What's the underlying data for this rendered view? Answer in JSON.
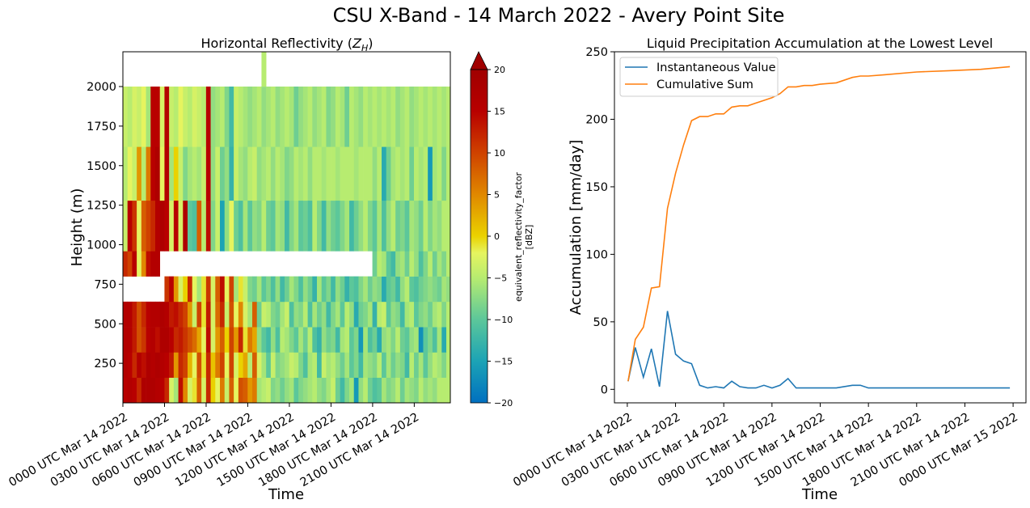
{
  "figure": {
    "suptitle": "CSU X-Band - 14 March 2022 - Avery Point Site"
  },
  "chart_data": [
    {
      "type": "heatmap",
      "title": "Horizontal Reflectivity (Z_H)",
      "title_text": "Horizontal Reflectivity (",
      "title_symbol": "Z",
      "title_subscript": "H",
      "title_end": ")",
      "xlabel": "Time",
      "ylabel": "Height (m)",
      "xlim": [
        0,
        23.6
      ],
      "ylim": [
        0,
        2220
      ],
      "xticks": [
        0,
        3,
        6,
        9,
        12,
        15,
        18,
        21
      ],
      "xtick_labels": [
        "0000 UTC Mar 14 2022",
        "0300 UTC Mar 14 2022",
        "0600 UTC Mar 14 2022",
        "0900 UTC Mar 14 2022",
        "1200 UTC Mar 14 2022",
        "1500 UTC Mar 14 2022",
        "1800 UTC Mar 14 2022",
        "2100 UTC Mar 14 2022"
      ],
      "yticks": [
        250,
        500,
        750,
        1000,
        1250,
        1500,
        1750,
        2000
      ],
      "ytick_labels": [
        "250",
        "500",
        "750",
        "1000",
        "1250",
        "1500",
        "1750",
        "2000"
      ],
      "colorbar": {
        "label_line1": "equivalent_reflectivity_factor",
        "label_line2": "[dBZ]",
        "min": -20,
        "max": 20,
        "extend": "max",
        "ticks": [
          -20,
          -15,
          -10,
          -5,
          0,
          5,
          10,
          15,
          20
        ],
        "tick_labels": [
          "−20",
          "−15",
          "−10",
          "−5",
          "0",
          "5",
          "10",
          "15",
          "20"
        ]
      },
      "time_bin_hours": 0.333,
      "n_time_bins": 71,
      "height_bands": [
        [
          0,
          160
        ],
        [
          160,
          320
        ],
        [
          320,
          480
        ],
        [
          480,
          640
        ],
        [
          640,
          800
        ],
        [
          800,
          960
        ],
        [
          960,
          1280
        ],
        [
          1280,
          1620
        ],
        [
          1620,
          2000
        ],
        [
          2000,
          2220
        ]
      ],
      "values_dbz": [
        [
          15,
          16,
          15,
          12,
          17,
          17,
          17,
          16,
          15,
          12,
          -3,
          -6,
          14,
          5,
          -3,
          -1,
          8,
          -3,
          12,
          0,
          -2,
          6,
          -4,
          8,
          -2,
          9,
          8,
          4,
          6,
          -6,
          -5,
          -4,
          -8,
          -7,
          -9,
          -7,
          -6,
          -10,
          -8,
          -7,
          -6,
          -5,
          -7,
          -8,
          -6,
          -4,
          -9,
          -12,
          -8,
          -6,
          -16,
          -7,
          -5,
          -9,
          -11,
          -10,
          -6,
          -8,
          -7,
          -5,
          -9,
          -6,
          -7,
          -8,
          -5,
          -7,
          -6,
          -7,
          -5,
          -5,
          -5
        ],
        [
          16,
          15,
          12,
          16,
          14,
          17,
          16,
          17,
          16,
          15,
          13,
          4,
          12,
          10,
          2,
          -2,
          9,
          -1,
          12,
          1,
          6,
          10,
          -2,
          10,
          -3,
          0,
          3,
          -5,
          8,
          -3,
          -6,
          -10,
          -4,
          -8,
          -7,
          -6,
          -4,
          -5,
          -8,
          -11,
          -6,
          -5,
          -12,
          -4,
          -6,
          -5,
          -7,
          -9,
          -6,
          -10,
          -8,
          -12,
          -6,
          -7,
          -8,
          -5,
          -10,
          -6,
          -9,
          -7,
          -8,
          -12,
          -5,
          -9,
          -6,
          -10,
          -7,
          -5,
          -6,
          -8,
          -5
        ],
        [
          16,
          16,
          13,
          9,
          11,
          15,
          16,
          14,
          17,
          17,
          15,
          12,
          13,
          11,
          9,
          7,
          3,
          -2,
          14,
          -3,
          4,
          8,
          0,
          10,
          4,
          12,
          -1,
          6,
          3,
          -7,
          -10,
          -12,
          -7,
          -11,
          -5,
          -6,
          -8,
          -10,
          -6,
          -9,
          -5,
          -11,
          -13,
          -7,
          -9,
          -8,
          -12,
          -6,
          -5,
          -10,
          -8,
          -16,
          -6,
          -11,
          -9,
          -14,
          -7,
          -6,
          -8,
          -5,
          -9,
          -10,
          -7,
          -6,
          -17,
          -10,
          -8,
          -11,
          -6,
          -14,
          -5
        ],
        [
          16,
          16,
          13,
          9,
          12,
          15,
          16,
          16,
          17,
          16,
          13,
          14,
          12,
          10,
          4,
          -4,
          10,
          -1,
          13,
          -3,
          7,
          12,
          -4,
          9,
          -2,
          5,
          -3,
          -6,
          8,
          -9,
          -4,
          -5,
          -8,
          -9,
          -6,
          -4,
          -11,
          -7,
          -8,
          -5,
          -11,
          -6,
          -9,
          -7,
          -12,
          -8,
          -6,
          -10,
          -5,
          -7,
          -14,
          -9,
          -8,
          -6,
          -13,
          -5,
          -4,
          -10,
          -7,
          -8,
          -12,
          -6,
          -5,
          -10,
          -8,
          -7,
          -9,
          -6,
          -5,
          -8,
          -5
        ],
        [
          null,
          null,
          null,
          null,
          null,
          null,
          null,
          null,
          null,
          11,
          15,
          4,
          -3,
          0,
          12,
          -2,
          -6,
          -1,
          11,
          -3,
          8,
          14,
          -2,
          10,
          -6,
          -1,
          -4,
          -8,
          -9,
          -6,
          -10,
          -8,
          -11,
          -7,
          -12,
          -9,
          -6,
          -8,
          -11,
          -7,
          -9,
          -13,
          -6,
          -10,
          -8,
          -12,
          -7,
          -9,
          -13,
          -10,
          -11,
          -8,
          -6,
          -9,
          -7,
          -8,
          -14,
          -10,
          -9,
          -12,
          -7,
          -5,
          -10,
          -11,
          -9,
          -8,
          -7,
          -8,
          -9,
          -6,
          -7
        ],
        [
          12,
          10,
          15,
          -2,
          5,
          14,
          16,
          16,
          null,
          null,
          null,
          null,
          null,
          null,
          null,
          null,
          null,
          null,
          null,
          null,
          null,
          null,
          null,
          null,
          null,
          null,
          null,
          null,
          null,
          null,
          null,
          null,
          null,
          null,
          null,
          null,
          null,
          null,
          null,
          null,
          null,
          null,
          null,
          null,
          null,
          null,
          null,
          null,
          null,
          null,
          null,
          null,
          null,
          null,
          -9,
          -5,
          -6,
          -10,
          -12,
          -7,
          -6,
          -9,
          -5,
          -7,
          -11,
          -8,
          -5,
          -9,
          -6,
          -8,
          -5
        ],
        [
          -4,
          15,
          11,
          -2,
          8,
          10,
          12,
          16,
          17,
          15,
          -3,
          15,
          -3,
          17,
          -10,
          -11,
          8,
          -5,
          14,
          -8,
          -4,
          -15,
          -7,
          -2,
          -9,
          -11,
          -6,
          -10,
          -7,
          -8,
          -5,
          -9,
          -10,
          -6,
          -7,
          -12,
          -8,
          -6,
          -10,
          -9,
          -11,
          -5,
          -8,
          -12,
          -7,
          -9,
          -10,
          -8,
          -6,
          -12,
          -9,
          -7,
          -5,
          -8,
          -10,
          -6,
          -11,
          -7,
          -5,
          -9,
          -8,
          -10,
          -6,
          -7,
          -9,
          -5,
          -8,
          -6,
          -7,
          -5,
          -5
        ],
        [
          -5,
          -2,
          -4,
          4,
          -5,
          6,
          15,
          17,
          -2,
          16,
          -6,
          0,
          -4,
          -8,
          -6,
          -5,
          -6,
          -4,
          15,
          -7,
          -4,
          -9,
          -7,
          -13,
          -4,
          -6,
          -7,
          -5,
          -4,
          -7,
          -6,
          -5,
          -7,
          -5,
          -6,
          -8,
          -7,
          -5,
          -6,
          -5,
          -7,
          -5,
          -5,
          -6,
          -5,
          -5,
          -6,
          -5,
          -5,
          -5,
          -6,
          -5,
          -5,
          -5,
          -7,
          -5,
          -14,
          -9,
          -6,
          -5,
          -6,
          -5,
          -9,
          -5,
          -6,
          -5,
          -16,
          -6,
          -5,
          -8,
          -5
        ],
        [
          -4,
          -5,
          -3,
          -4,
          -2,
          -6,
          15,
          15,
          -3,
          16,
          -4,
          -5,
          -2,
          -4,
          -5,
          -3,
          -4,
          -5,
          15,
          -7,
          -6,
          -5,
          -8,
          -12,
          -4,
          -5,
          -6,
          -7,
          -6,
          -5,
          -7,
          -6,
          -5,
          -7,
          -6,
          -5,
          -6,
          -9,
          -7,
          -6,
          -5,
          -7,
          -6,
          -5,
          -8,
          -7,
          -5,
          -6,
          -9,
          -5,
          -6,
          -7,
          -5,
          -6,
          -5,
          -6,
          -5,
          -6,
          -5,
          -7,
          -6,
          -5,
          -7,
          -6,
          -5,
          -6,
          -5,
          -6,
          -5,
          -6,
          -5
        ],
        [
          null,
          null,
          null,
          null,
          null,
          null,
          null,
          null,
          null,
          null,
          null,
          null,
          null,
          null,
          null,
          null,
          null,
          null,
          null,
          null,
          null,
          null,
          null,
          null,
          null,
          null,
          null,
          null,
          null,
          null,
          -5,
          null,
          null,
          null,
          null,
          null,
          null,
          null,
          null,
          null,
          null,
          null,
          null,
          null,
          null,
          null,
          null,
          null,
          null,
          null,
          null,
          null,
          null,
          null,
          null,
          null,
          null,
          null,
          null,
          null,
          null,
          null,
          null,
          null,
          null,
          null,
          null,
          null,
          null,
          null,
          null
        ]
      ]
    },
    {
      "type": "line",
      "title": "Liquid Precipitation Accumulation at the Lowest Level",
      "xlabel": "Time",
      "ylabel": "Accumulation [mm/day]",
      "xlim": [
        -0.8,
        24.8
      ],
      "ylim": [
        -10,
        250
      ],
      "xticks": [
        0,
        3,
        6,
        9,
        12,
        15,
        18,
        21,
        24
      ],
      "xtick_labels": [
        "0000 UTC Mar 14 2022",
        "0300 UTC Mar 14 2022",
        "0600 UTC Mar 14 2022",
        "0900 UTC Mar 14 2022",
        "1200 UTC Mar 14 2022",
        "1500 UTC Mar 14 2022",
        "1800 UTC Mar 14 2022",
        "2100 UTC Mar 14 2022",
        "0000 UTC Mar 15 2022"
      ],
      "yticks": [
        0,
        50,
        100,
        150,
        200,
        250
      ],
      "ytick_labels": [
        "0",
        "50",
        "100",
        "150",
        "200",
        "250"
      ],
      "legend_position": "top-left",
      "series": [
        {
          "name": "Instantaneous Value",
          "color": "#1f77b4",
          "x": [
            0.05,
            0.5,
            1.0,
            1.5,
            2.0,
            2.5,
            3.0,
            3.5,
            4.0,
            4.5,
            5.0,
            5.5,
            6.0,
            6.5,
            7.0,
            7.5,
            8.0,
            8.5,
            9.0,
            9.5,
            10.0,
            10.5,
            11.0,
            11.5,
            12.0,
            13.0,
            14.0,
            14.5,
            15.0,
            16.0,
            18.0,
            20.0,
            22.0,
            23.8
          ],
          "y": [
            6,
            31,
            9,
            30,
            2,
            58,
            26,
            21,
            19,
            3,
            1,
            2,
            1,
            6,
            2,
            1,
            1,
            3,
            1,
            3,
            8,
            1,
            1,
            1,
            1,
            1,
            3,
            3,
            1,
            1,
            1,
            1,
            1,
            1
          ]
        },
        {
          "name": "Cumulative Sum",
          "color": "#ff7f0e",
          "x": [
            0.05,
            0.5,
            1.0,
            1.5,
            2.0,
            2.5,
            3.0,
            3.5,
            4.0,
            4.5,
            5.0,
            5.5,
            6.0,
            6.5,
            7.0,
            7.5,
            8.0,
            8.5,
            9.0,
            9.5,
            10.0,
            10.5,
            11.0,
            11.5,
            12.0,
            13.0,
            14.0,
            14.5,
            15.0,
            16.0,
            18.0,
            20.0,
            22.0,
            23.8
          ],
          "y": [
            6,
            37,
            46,
            75,
            76,
            134,
            160,
            181,
            199,
            202,
            202,
            204,
            204,
            209,
            210,
            210,
            212,
            214,
            216,
            219,
            224,
            224,
            225,
            225,
            226,
            227,
            231,
            232,
            232,
            233,
            235,
            236,
            237,
            239
          ]
        }
      ]
    }
  ]
}
